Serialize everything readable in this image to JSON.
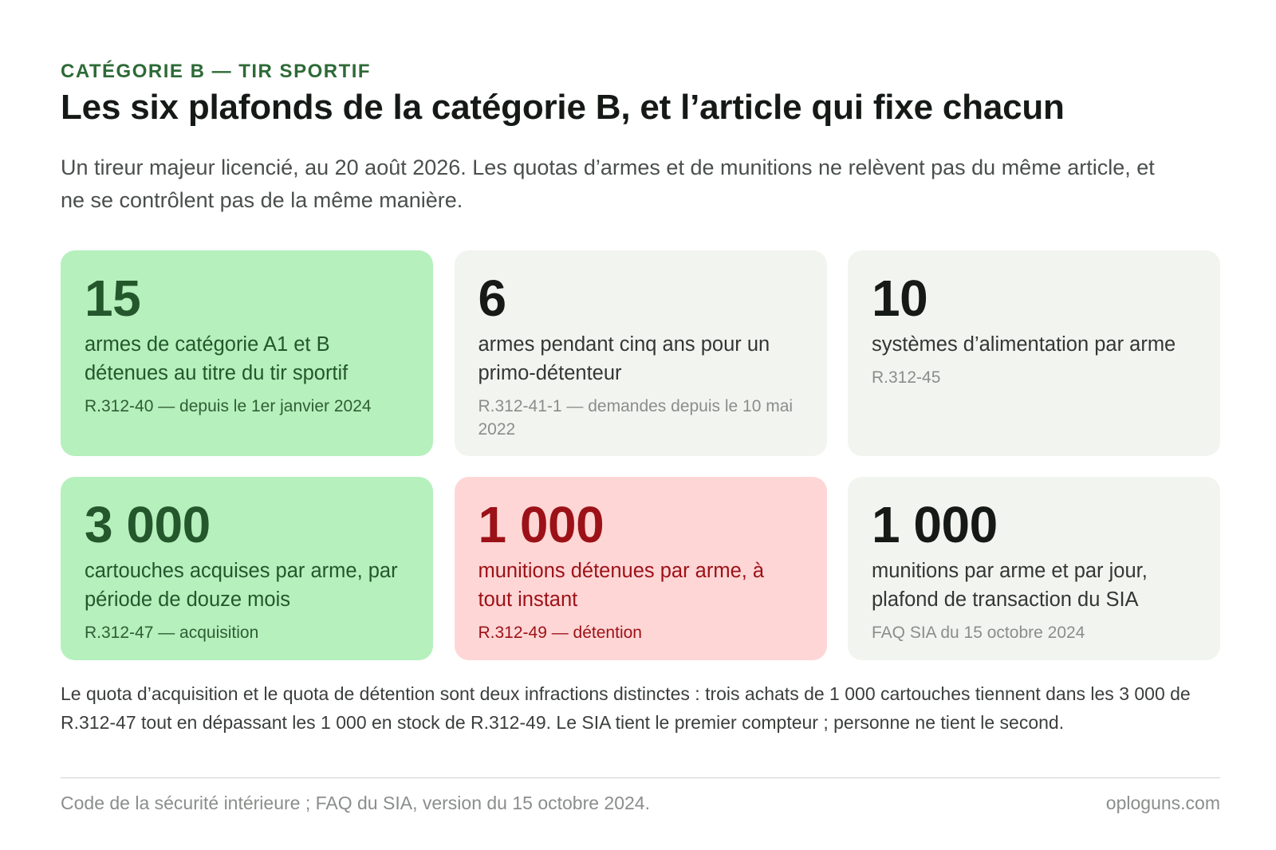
{
  "header": {
    "kicker": "CATÉGORIE B — TIR SPORTIF",
    "title": "Les six plafonds de la catégorie B, et l’article qui fixe chacun",
    "subtitle": "Un tireur majeur licencié, au 20 août 2026. Les quotas d’armes et de munitions ne relèvent pas du même article, et ne se contrôlent pas de la même manière."
  },
  "cards": [
    {
      "value": "15",
      "description": "armes de catégorie A1 et B détenues au titre du tir sportif",
      "reference": "R.312-40 — depuis le 1er janvier 2024",
      "tone": "green"
    },
    {
      "value": "6",
      "description": "armes pendant cinq ans pour un primo-détenteur",
      "reference": "R.312-41-1 — demandes depuis le 10 mai 2022",
      "tone": "grey"
    },
    {
      "value": "10",
      "description": "systèmes d’alimentation par arme",
      "reference": "R.312-45",
      "tone": "grey"
    },
    {
      "value": "3 000",
      "description": "cartouches acquises par arme, par période de douze mois",
      "reference": "R.312-47 — acquisition",
      "tone": "green"
    },
    {
      "value": "1 000",
      "description": "munitions détenues par arme, à tout instant",
      "reference": "R.312-49 — détention",
      "tone": "red"
    },
    {
      "value": "1 000",
      "description": "munitions par arme et par jour, plafond de transaction du SIA",
      "reference": "FAQ SIA du 15 octobre 2024",
      "tone": "grey"
    }
  ],
  "colors": {
    "green_bg": "#b6f0bd",
    "grey_bg": "#f2f4ef",
    "red_bg": "#ffd6d6",
    "accent_green": "#2d6a36",
    "accent_red": "#9c1117"
  },
  "note": "Le quota d’acquisition et le quota de détention sont deux infractions distinctes : trois achats de 1 000 cartouches tiennent dans les 3 000 de R.312-47 tout en dépassant les 1 000 en stock de R.312-49. Le SIA tient le premier compteur ; personne ne tient le second.",
  "footer": {
    "source": "Code de la sécurité intérieure ; FAQ du SIA, version du 15 octobre 2024.",
    "site": "oploguns.com"
  }
}
